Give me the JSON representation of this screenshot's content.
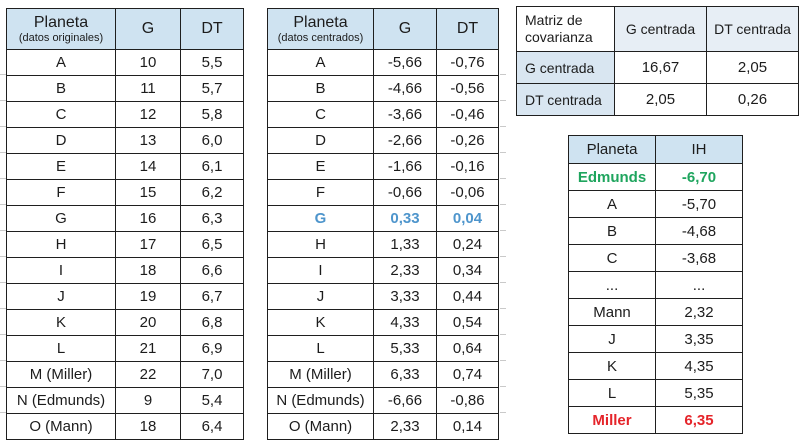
{
  "colors": {
    "header_bg": "#cfe3f1",
    "cov_header_bg": "#e7eef5",
    "cov_label_bg": "#d9e6f1",
    "accent_blue": "#4e95cc",
    "accent_green": "#1fa55e",
    "accent_red": "#e5242a",
    "border": "#1f1f1f",
    "text": "#1c1c1c"
  },
  "table_originales": {
    "header": {
      "title": "Planeta",
      "subtitle": "(datos originales)",
      "col_g": "G",
      "col_dt": "DT"
    },
    "rows": [
      {
        "cells": [
          "A",
          "10",
          "5,5"
        ]
      },
      {
        "cells": [
          "B",
          "11",
          "5,7"
        ]
      },
      {
        "cells": [
          "C",
          "12",
          "5,8"
        ]
      },
      {
        "cells": [
          "D",
          "13",
          "6,0"
        ]
      },
      {
        "cells": [
          "E",
          "14",
          "6,1"
        ]
      },
      {
        "cells": [
          "F",
          "15",
          "6,2"
        ]
      },
      {
        "cells": [
          "G",
          "16",
          "6,3"
        ]
      },
      {
        "cells": [
          "H",
          "17",
          "6,5"
        ]
      },
      {
        "cells": [
          "I",
          "18",
          "6,6"
        ]
      },
      {
        "cells": [
          "J",
          "19",
          "6,7"
        ]
      },
      {
        "cells": [
          "K",
          "20",
          "6,8"
        ]
      },
      {
        "cells": [
          "L",
          "21",
          "6,9"
        ]
      },
      {
        "cells": [
          "M (Miller)",
          "22",
          "7,0"
        ]
      },
      {
        "cells": [
          "N (Edmunds)",
          "9",
          "5,4"
        ]
      },
      {
        "cells": [
          "O (Mann)",
          "18",
          "6,4"
        ]
      }
    ]
  },
  "table_centrados": {
    "header": {
      "title": "Planeta",
      "subtitle": "(datos centrados)",
      "col_g": "G",
      "col_dt": "DT"
    },
    "rows": [
      {
        "cells": [
          "A",
          "-5,66",
          "-0,76"
        ]
      },
      {
        "cells": [
          "B",
          "-4,66",
          "-0,56"
        ]
      },
      {
        "cells": [
          "C",
          "-3,66",
          "-0,46"
        ]
      },
      {
        "cells": [
          "D",
          "-2,66",
          "-0,26"
        ]
      },
      {
        "cells": [
          "E",
          "-1,66",
          "-0,16"
        ]
      },
      {
        "cells": [
          "F",
          "-0,66",
          "-0,06"
        ]
      },
      {
        "cells": [
          "G",
          "0,33",
          "0,04"
        ],
        "class": "row-blue"
      },
      {
        "cells": [
          "H",
          "1,33",
          "0,24"
        ]
      },
      {
        "cells": [
          "I",
          "2,33",
          "0,34"
        ]
      },
      {
        "cells": [
          "J",
          "3,33",
          "0,44"
        ]
      },
      {
        "cells": [
          "K",
          "4,33",
          "0,54"
        ]
      },
      {
        "cells": [
          "L",
          "5,33",
          "0,64"
        ]
      },
      {
        "cells": [
          "M (Miller)",
          "6,33",
          "0,74"
        ]
      },
      {
        "cells": [
          "N (Edmunds)",
          "-6,66",
          "-0,86"
        ]
      },
      {
        "cells": [
          "O (Mann)",
          "2,33",
          "0,14"
        ]
      }
    ]
  },
  "table_covarianza": {
    "corner": "Matriz de covarianza",
    "col_headers": [
      "G centrada",
      "DT centrada"
    ],
    "rows": [
      {
        "cells": [
          "G centrada",
          "16,67",
          "2,05"
        ]
      },
      {
        "cells": [
          "DT centrada",
          "2,05",
          "0,26"
        ]
      }
    ]
  },
  "table_ih": {
    "headers": [
      "Planeta",
      "IH"
    ],
    "rows": [
      {
        "cells": [
          "Edmunds",
          "-6,70"
        ],
        "class": "row-green"
      },
      {
        "cells": [
          "A",
          "-5,70"
        ]
      },
      {
        "cells": [
          "B",
          "-4,68"
        ]
      },
      {
        "cells": [
          "C",
          "-3,68"
        ]
      },
      {
        "cells": [
          "...",
          "..."
        ]
      },
      {
        "cells": [
          "Mann",
          "2,32"
        ]
      },
      {
        "cells": [
          "J",
          "3,35"
        ]
      },
      {
        "cells": [
          "K",
          "4,35"
        ]
      },
      {
        "cells": [
          "L",
          "5,35"
        ]
      },
      {
        "cells": [
          "Miller",
          "6,35"
        ],
        "class": "row-red"
      }
    ]
  }
}
